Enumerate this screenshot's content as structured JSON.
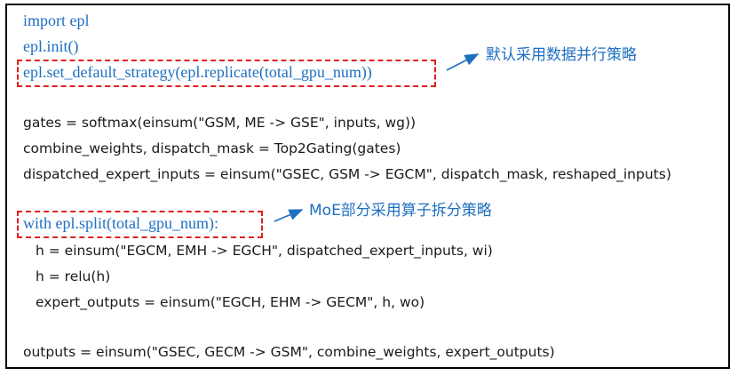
{
  "code_lines": [
    "import epl",
    "epl.init()",
    "epl.set_default_strategy(epl.replicate(total_gpu_num))",
    "gates = softmax(einsum(\"GSM, ME -> GSE\", inputs, wg))",
    "combine_weights, dispatch_mask = Top2Gating(gates)",
    "dispatched_expert_inputs = einsum(\"GSEC, GSM -> EGCM\", dispatch_mask, reshaped_inputs)",
    "with epl.split(total_gpu_num):",
    "h = einsum(\"EGCM, EMH -> EGCH\", dispatched_expert_inputs, wi)",
    "h = relu(h)",
    "expert_outputs = einsum(\"EGCH, EHM -> GECM\", h, wo)",
    "outputs = einsum(\"GSEC, GECM -> GSM\", combine_weights, expert_outputs)"
  ],
  "annotations": {
    "default_strategy": "默认采用数据并行策略",
    "moe_split": "MoE部分采用算子拆分策略"
  },
  "colors": {
    "keyword_blue": "#1f6fc0",
    "dash_red": "#e0201e",
    "text": "#1a1a1a"
  }
}
